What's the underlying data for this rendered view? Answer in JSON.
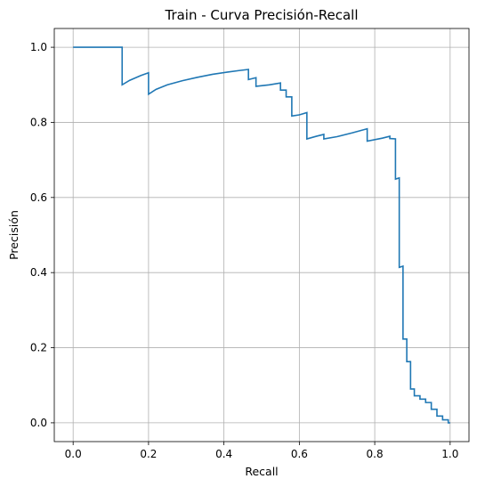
{
  "chart_data": {
    "type": "line",
    "title": "Train - Curva Precisión-Recall",
    "xlabel": "Recall",
    "ylabel": "Precisión",
    "xlim": [
      -0.05,
      1.05
    ],
    "ylim": [
      -0.05,
      1.05
    ],
    "grid": true,
    "line_color": "#1f77b4",
    "x_ticks": [
      "0.0",
      "0.2",
      "0.4",
      "0.6",
      "0.8",
      "1.0"
    ],
    "y_ticks": [
      "0.0",
      "0.2",
      "0.4",
      "0.6",
      "0.8",
      "1.0"
    ],
    "series": [
      {
        "x": [
          0.0,
          0.13,
          0.13,
          0.15,
          0.18,
          0.2,
          0.2,
          0.22,
          0.25,
          0.29,
          0.33,
          0.37,
          0.41,
          0.44,
          0.465,
          0.465,
          0.485,
          0.485,
          0.52,
          0.55,
          0.55,
          0.565,
          0.565,
          0.58,
          0.58,
          0.6,
          0.62,
          0.62,
          0.645,
          0.665,
          0.665,
          0.7,
          0.74,
          0.78,
          0.78,
          0.82,
          0.84,
          0.84,
          0.855,
          0.855,
          0.865,
          0.865,
          0.875,
          0.875,
          0.885,
          0.885,
          0.895,
          0.895,
          0.905,
          0.905,
          0.92,
          0.92,
          0.935,
          0.935,
          0.95,
          0.95,
          0.965,
          0.965,
          0.98,
          0.98,
          0.995,
          0.995,
          1.0
        ],
        "y": [
          1.0,
          1.0,
          0.9,
          0.912,
          0.925,
          0.932,
          0.875,
          0.888,
          0.9,
          0.911,
          0.92,
          0.928,
          0.934,
          0.938,
          0.941,
          0.914,
          0.919,
          0.896,
          0.9,
          0.905,
          0.886,
          0.886,
          0.868,
          0.868,
          0.817,
          0.82,
          0.826,
          0.756,
          0.763,
          0.768,
          0.756,
          0.762,
          0.772,
          0.783,
          0.75,
          0.758,
          0.763,
          0.757,
          0.756,
          0.649,
          0.652,
          0.414,
          0.417,
          0.223,
          0.223,
          0.163,
          0.163,
          0.09,
          0.09,
          0.072,
          0.072,
          0.063,
          0.063,
          0.054,
          0.054,
          0.036,
          0.036,
          0.018,
          0.018,
          0.008,
          0.008,
          0.0,
          0.0
        ]
      }
    ]
  }
}
